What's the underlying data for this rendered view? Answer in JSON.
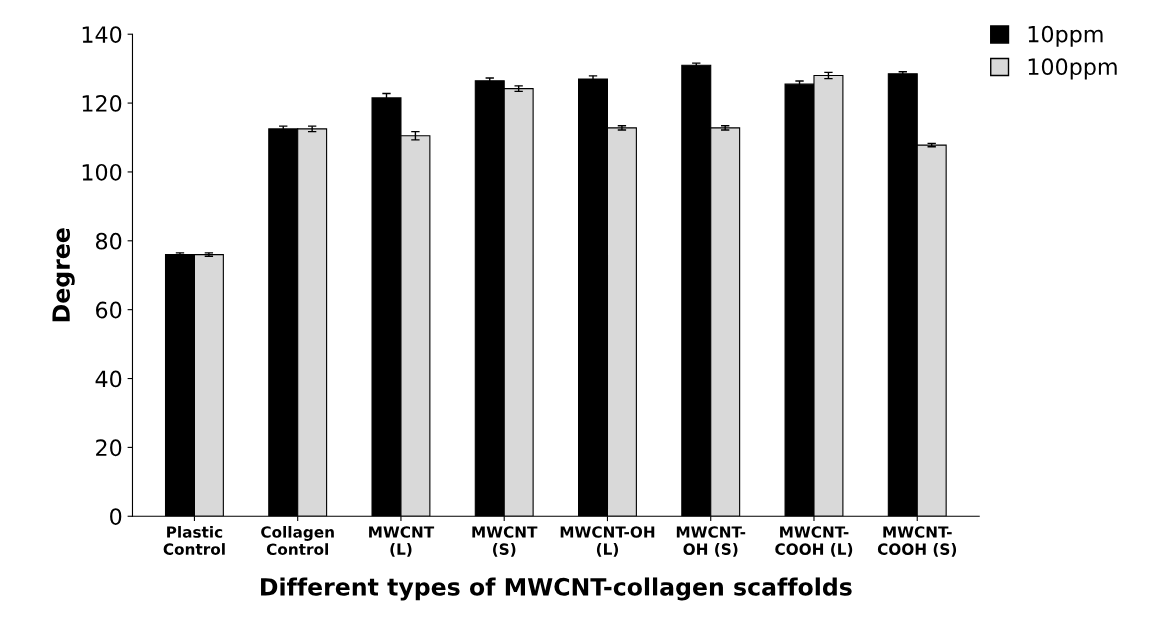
{
  "chart_data": {
    "type": "bar",
    "xlabel": "Different types of MWCNT-collagen scaffolds",
    "ylabel": "Degree",
    "categories": [
      "Plastic\nControl",
      "Collagen\nControl",
      "MWCNT\n(L)",
      "MWCNT\n(S)",
      "MWCNT-OH\n(L)",
      "MWCNT-\nOH (S)",
      "MWCNT-\nCOOH (L)",
      "MWCNT-\nCOOH (S)"
    ],
    "series": [
      {
        "name": "10ppm",
        "color": "#000000",
        "values": [
          76,
          112.5,
          121.5,
          126.5,
          127,
          131,
          125.5,
          128.5
        ],
        "errors": [
          0.5,
          0.8,
          1.3,
          0.8,
          0.9,
          0.6,
          0.9,
          0.6
        ]
      },
      {
        "name": "100ppm",
        "color": "#d9d9d9",
        "values": [
          76,
          112.5,
          110.5,
          124.2,
          112.8,
          112.8,
          128,
          107.8
        ],
        "errors": [
          0.5,
          0.8,
          1.2,
          0.8,
          0.6,
          0.6,
          0.9,
          0.5
        ]
      }
    ],
    "ylim": [
      0,
      140
    ],
    "yticks": [
      0,
      20,
      40,
      60,
      80,
      100,
      120,
      140
    ],
    "grid": false,
    "legend": "top right"
  }
}
